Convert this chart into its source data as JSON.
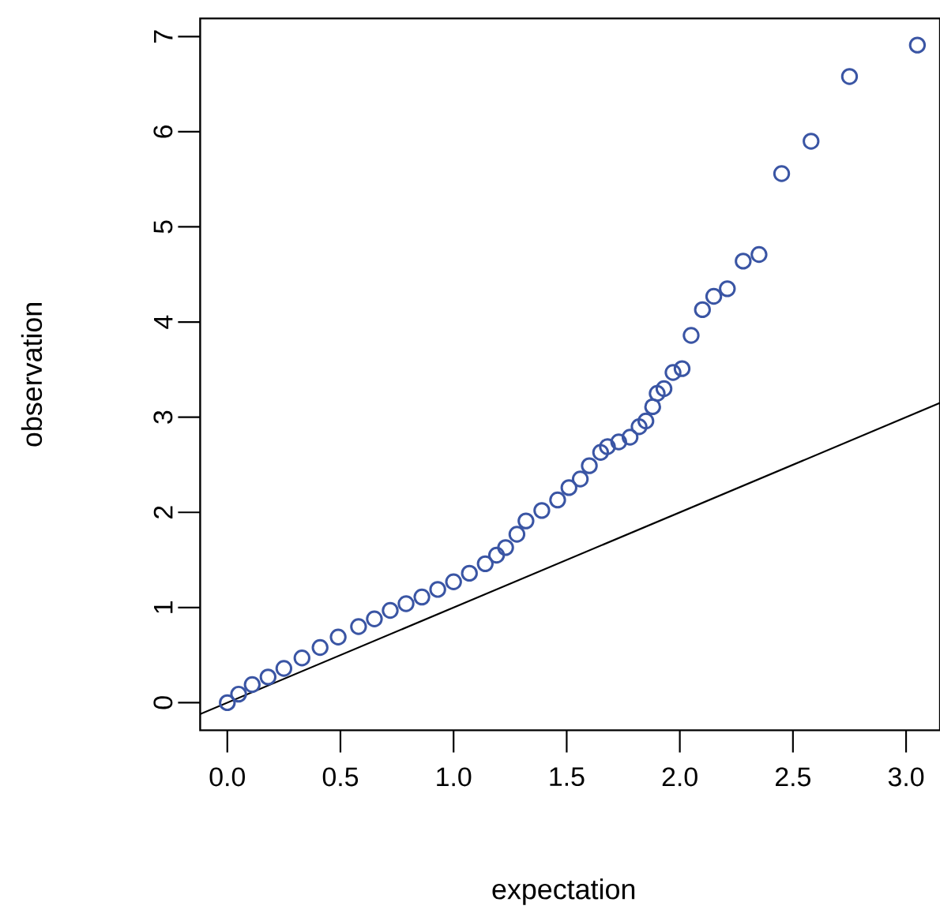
{
  "chart_data": {
    "type": "scatter",
    "xlabel": "expectation",
    "ylabel": "observation",
    "xlim": [
      -0.12,
      3.15
    ],
    "ylim": [
      -0.29,
      7.19
    ],
    "xticks": [
      {
        "value": 0,
        "label": "0.0"
      },
      {
        "value": 0.5,
        "label": "0.5"
      },
      {
        "value": 1,
        "label": "1.0"
      },
      {
        "value": 1.5,
        "label": "1.5"
      },
      {
        "value": 2,
        "label": "2.0"
      },
      {
        "value": 2.5,
        "label": "2.5"
      },
      {
        "value": 3,
        "label": "3.0"
      }
    ],
    "yticks": [
      0,
      1,
      2,
      3,
      4,
      5,
      6,
      7
    ],
    "grid": false,
    "series": [
      {
        "marker": "circle",
        "color": "#3a55a4",
        "x": [
          0,
          0.05,
          0.11,
          0.18,
          0.25,
          0.33,
          0.41,
          0.49,
          0.58,
          0.65,
          0.72,
          0.79,
          0.86,
          0.93,
          1.0,
          1.07,
          1.14,
          1.19,
          1.23,
          1.28,
          1.32,
          1.39,
          1.46,
          1.51,
          1.56,
          1.6,
          1.65,
          1.68,
          1.73,
          1.78,
          1.82,
          1.85,
          1.88,
          1.9,
          1.93,
          1.97,
          2.01,
          2.05,
          2.1,
          2.15,
          2.21,
          2.28,
          2.35,
          2.45,
          2.58,
          2.75,
          3.05
        ],
        "values": [
          0,
          0.09,
          0.19,
          0.27,
          0.36,
          0.47,
          0.58,
          0.69,
          0.8,
          0.88,
          0.97,
          1.04,
          1.11,
          1.19,
          1.27,
          1.36,
          1.46,
          1.55,
          1.63,
          1.77,
          1.91,
          2.02,
          2.13,
          2.26,
          2.35,
          2.49,
          2.63,
          2.69,
          2.74,
          2.79,
          2.9,
          2.96,
          3.11,
          3.25,
          3.3,
          3.47,
          3.51,
          3.86,
          4.13,
          4.27,
          4.35,
          4.64,
          4.71,
          5.56,
          5.9,
          6.58,
          6.91
        ]
      },
      {
        "type": "line",
        "marker": "none",
        "color": "#000000",
        "x": [
          -0.12,
          3.15
        ],
        "values": [
          -0.12,
          3.15
        ]
      }
    ]
  }
}
